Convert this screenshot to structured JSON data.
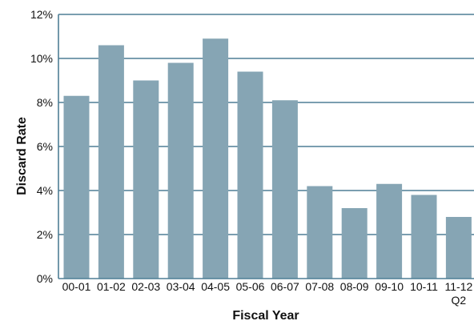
{
  "chart_data": {
    "type": "bar",
    "xlabel": "Fiscal Year",
    "ylabel": "Discard Rate",
    "categories": [
      "00-01",
      "01-02",
      "02-03",
      "03-04",
      "04-05",
      "05-06",
      "06-07",
      "07-08",
      "08-09",
      "09-10",
      "10-11",
      "11-12 Q2"
    ],
    "category_lines": [
      [
        "00-01"
      ],
      [
        "01-02"
      ],
      [
        "02-03"
      ],
      [
        "03-04"
      ],
      [
        "04-05"
      ],
      [
        "05-06"
      ],
      [
        "06-07"
      ],
      [
        "07-08"
      ],
      [
        "08-09"
      ],
      [
        "09-10"
      ],
      [
        "10-11"
      ],
      [
        "11-12",
        "Q2"
      ]
    ],
    "values": [
      8.3,
      10.6,
      9.0,
      9.8,
      10.9,
      9.4,
      8.1,
      4.2,
      3.2,
      4.3,
      3.8,
      2.8
    ],
    "ylim": [
      0,
      12
    ],
    "yticks": [
      0,
      2,
      4,
      6,
      8,
      10,
      12
    ],
    "ytick_labels": [
      "0%",
      "2%",
      "4%",
      "6%",
      "8%",
      "10%",
      "12%"
    ],
    "grid": true,
    "legend": "none",
    "colors": {
      "bar": "#86a5b4",
      "grid": "#4f7f95",
      "axis": "#4f7f95"
    }
  }
}
